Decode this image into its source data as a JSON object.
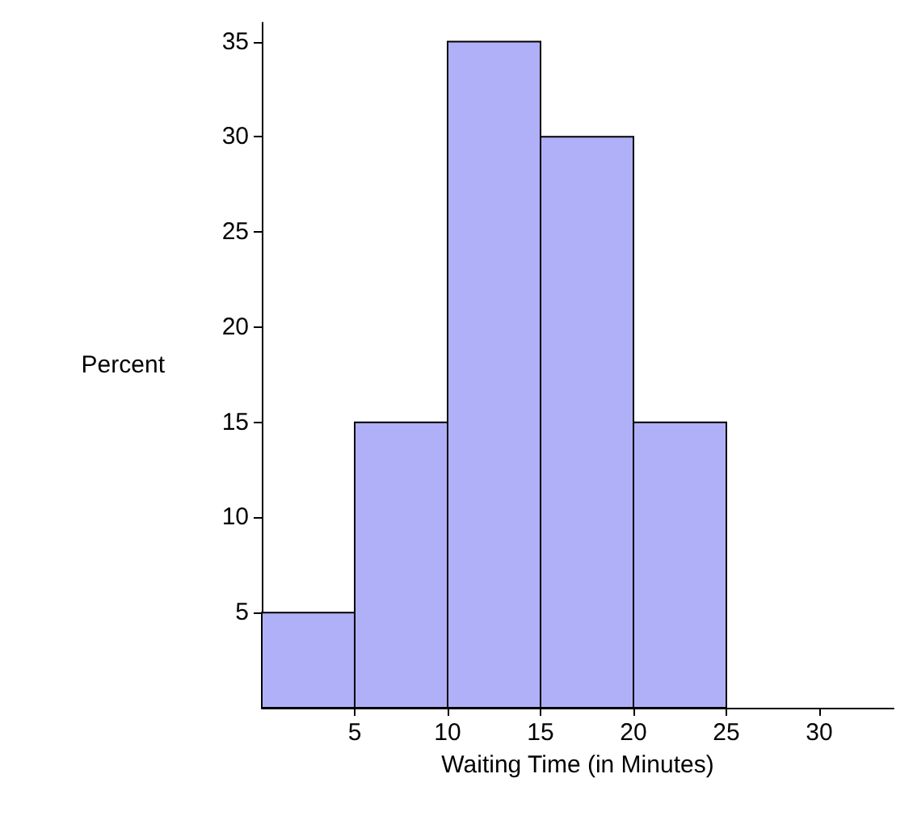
{
  "chart_data": {
    "type": "histogram",
    "xlabel": "Waiting Time (in Minutes)",
    "ylabel": "Percent",
    "bins": [
      0,
      5,
      10,
      15,
      20,
      25
    ],
    "values": [
      5,
      15,
      35,
      30,
      15
    ],
    "color": "#b0b0f8",
    "xlim": [
      0,
      34
    ],
    "xticks": [
      5,
      10,
      15,
      20,
      25,
      30
    ],
    "ylim": [
      0,
      36
    ],
    "yticks": [
      5,
      10,
      15,
      20,
      25,
      30,
      35
    ],
    "grid": false
  }
}
